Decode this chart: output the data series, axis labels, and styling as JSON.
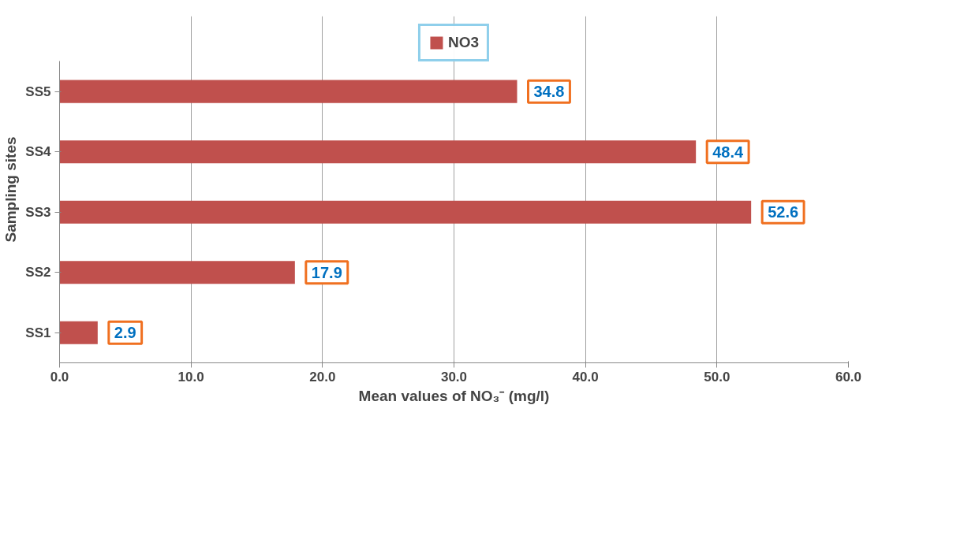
{
  "chart_data": {
    "type": "bar",
    "orientation": "horizontal",
    "categories": [
      "SS5",
      "SS4",
      "SS3",
      "SS2",
      "SS1"
    ],
    "series": [
      {
        "name": "NO3",
        "color": "#c0504d",
        "values": [
          34.8,
          48.4,
          52.6,
          17.9,
          2.9
        ]
      }
    ],
    "xlabel": "Mean values of NO₃⁻ (mg/l)",
    "ylabel": "Sampling sites",
    "xlim": [
      0,
      60
    ],
    "xticks": [
      {
        "value": 0,
        "label": "0.0"
      },
      {
        "value": 10,
        "label": "10.0"
      },
      {
        "value": 20,
        "label": "20.0"
      },
      {
        "value": 30,
        "label": "30.0"
      },
      {
        "value": 40,
        "label": "40.0"
      },
      {
        "value": 50,
        "label": "50.0"
      },
      {
        "value": 60,
        "label": "60.0"
      }
    ],
    "grid": "x",
    "legend": "top",
    "data_labels": true
  }
}
